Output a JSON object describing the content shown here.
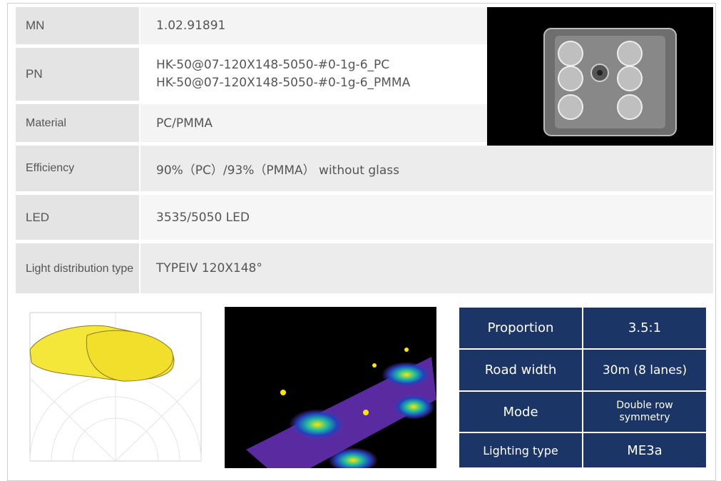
{
  "spec_table": {
    "rows": [
      {
        "label": "MN",
        "value": "1.02.91891"
      },
      {
        "label": "PN",
        "value": [
          "HK-50@07-120X148-5050-#0-1g-6_PC",
          "HK-50@07-120X148-5050-#0-1g-6_PMMA"
        ]
      },
      {
        "label": "Material",
        "value": "PC/PMMA"
      },
      {
        "label": "Efficiency",
        "value": "90%（PC）/93%（PMMA） without glass"
      },
      {
        "label": "LED",
        "value": "3535/5050 LED"
      },
      {
        "label": "Light distribution type",
        "value": "TYPEIV 120X148°"
      }
    ]
  },
  "road_table": {
    "rows": [
      {
        "label": "Proportion",
        "value": "3.5:1"
      },
      {
        "label": "Road width",
        "value": "30m (8 lanes)"
      },
      {
        "label": "Mode",
        "value": "Double row symmetry"
      },
      {
        "label": "Lighting type",
        "value": "ME3a"
      }
    ]
  }
}
